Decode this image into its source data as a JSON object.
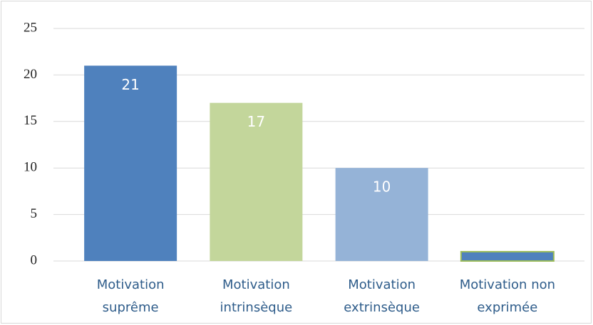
{
  "chart_data": {
    "type": "bar",
    "categories": [
      "Motivation suprême",
      "Motivation intrinsèque",
      "Motivation extrinsèque",
      "Motivation non exprimée"
    ],
    "values": [
      21,
      17,
      10,
      1
    ],
    "colors": [
      "#4f81bd",
      "#c3d69b",
      "#95b3d7",
      "#4f81bd"
    ],
    "ylim": [
      0,
      25
    ],
    "yticks": [
      0,
      5,
      10,
      15,
      20,
      25
    ],
    "grid": true
  }
}
